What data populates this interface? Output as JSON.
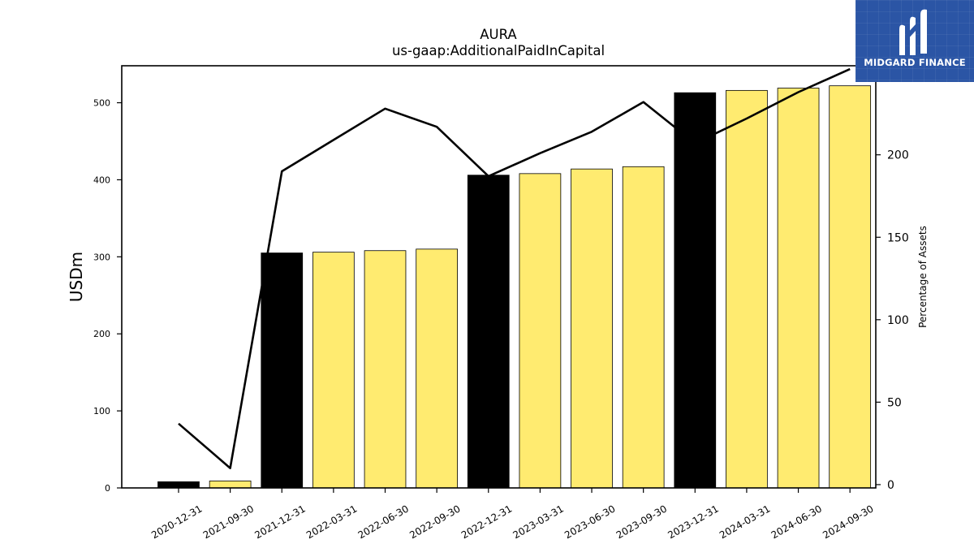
{
  "chart_data": {
    "type": "bar",
    "title": "AURA",
    "subtitle": "us-gaap:AdditionalPaidInCapital",
    "ylabel": "USDm",
    "y2label": "Percentage of Assets",
    "categories": [
      "2020-12-31",
      "2021-09-30",
      "2021-12-31",
      "2022-03-31",
      "2022-06-30",
      "2022-09-30",
      "2022-12-31",
      "2023-03-31",
      "2023-06-30",
      "2023-09-30",
      "2023-12-31",
      "2024-03-31",
      "2024-06-30",
      "2024-09-30"
    ],
    "series": [
      {
        "type": "bar",
        "axis": "left",
        "values": [
          8,
          9,
          305,
          306,
          308,
          310,
          406,
          408,
          414,
          417,
          513,
          516,
          519,
          522
        ],
        "colors": [
          "#000000",
          "#ffeb70",
          "#000000",
          "#ffeb70",
          "#ffeb70",
          "#ffeb70",
          "#000000",
          "#ffeb70",
          "#ffeb70",
          "#ffeb70",
          "#000000",
          "#ffeb70",
          "#ffeb70",
          "#ffeb70"
        ]
      },
      {
        "type": "line",
        "axis": "right",
        "color": "#000000",
        "values": [
          37,
          10,
          190,
          209,
          228,
          217,
          187,
          201,
          214,
          232,
          207,
          222,
          238,
          252
        ]
      }
    ],
    "ylim": [
      0,
      548
    ],
    "yticks": [
      0,
      100,
      200,
      300,
      400,
      500
    ],
    "y2lim": [
      -2,
      254
    ],
    "y2ticks": [
      0,
      50,
      100,
      150,
      200
    ],
    "grid": false,
    "legend": "none"
  },
  "logo": {
    "text": "MIDGARD FINANCE",
    "icon": "midgard-logo-icon",
    "background": "#2b55a5"
  }
}
